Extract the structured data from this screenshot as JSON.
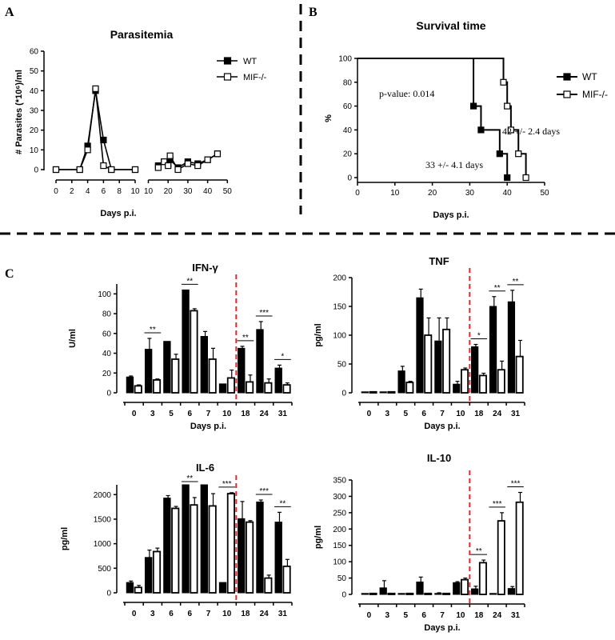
{
  "panels": {
    "A": "A",
    "B": "B",
    "C": "C"
  },
  "chart_data": [
    {
      "id": "parasitemia",
      "type": "line",
      "title": "Parasitemia",
      "xlabel": "Days p.i.",
      "ylabel": "# Parasites (*10⁶)/ml",
      "ylim": [
        0,
        60
      ],
      "yticks": [
        "0",
        "10",
        "20",
        "30",
        "40",
        "50",
        "60"
      ],
      "xticks_left": [
        "0",
        "2",
        "4",
        "6",
        "8",
        "10"
      ],
      "xticks_right": [
        "10",
        "20",
        "30",
        "40",
        "50"
      ],
      "legend": [
        "WT",
        "MIF-/-"
      ],
      "legend_position": "top-right",
      "series": [
        {
          "name": "WT",
          "marker": "filled-square",
          "x": [
            0,
            3,
            4,
            5,
            6,
            7,
            10,
            15,
            18,
            20,
            21,
            25,
            30,
            35,
            40,
            45
          ],
          "y": [
            0,
            0,
            12,
            40,
            15,
            0,
            0,
            2,
            4,
            3,
            5,
            1,
            4,
            3,
            5,
            8
          ]
        },
        {
          "name": "MIF-/-",
          "marker": "open-square",
          "x": [
            0,
            3,
            4,
            5,
            6,
            7,
            10,
            15,
            18,
            20,
            21,
            25,
            30,
            35,
            40,
            45
          ],
          "y": [
            0,
            0,
            10,
            41,
            2,
            0,
            0,
            1,
            4,
            2,
            7,
            0,
            3,
            2,
            5,
            8
          ]
        }
      ]
    },
    {
      "id": "survival",
      "type": "line",
      "title": "Survival time",
      "xlabel": "Days p.i.",
      "ylabel": "%",
      "xlim": [
        0,
        50
      ],
      "ylim": [
        0,
        100
      ],
      "xticks": [
        "0",
        "10",
        "20",
        "30",
        "40",
        "50"
      ],
      "yticks": [
        "0",
        "20",
        "40",
        "60",
        "80",
        "100"
      ],
      "legend": [
        "WT",
        "MIF-/-"
      ],
      "legend_position": "right",
      "annotations": [
        "p-value: 0.014",
        "42 +/- 2.4 days",
        "33 +/- 4.1 days"
      ],
      "series": [
        {
          "name": "WT",
          "x": [
            0,
            31,
            33,
            38,
            40
          ],
          "y": [
            100,
            60,
            40,
            20,
            0
          ]
        },
        {
          "name": "MIF-/-",
          "x": [
            0,
            39,
            40,
            41,
            43,
            45
          ],
          "y": [
            100,
            80,
            60,
            40,
            20,
            0
          ]
        }
      ]
    },
    {
      "id": "ifn",
      "type": "bar",
      "title": "IFN-γ",
      "xlabel": "Days p.i.",
      "ylabel": "U/ml",
      "ylim": [
        0,
        110
      ],
      "yticks": [
        "0",
        "20",
        "40",
        "60",
        "80",
        "100"
      ],
      "categories": [
        "0",
        "3",
        "5",
        "6",
        "7",
        "10",
        "18",
        "24",
        "31"
      ],
      "divider_after_index": 5,
      "series": [
        {
          "name": "WT",
          "values": [
            16,
            44,
            52,
            104,
            57,
            9,
            45,
            64,
            25
          ],
          "errors": [
            1,
            11,
            0,
            0,
            5,
            0,
            2,
            8,
            3
          ]
        },
        {
          "name": "MIF-/-",
          "values": [
            7,
            13,
            34,
            83,
            34,
            15,
            11,
            10,
            8
          ],
          "errors": [
            1,
            1,
            5,
            2,
            11,
            8,
            7,
            4,
            2
          ]
        }
      ],
      "significance": [
        {
          "index": 1,
          "label": "**"
        },
        {
          "index": 3,
          "label": "**"
        },
        {
          "index": 6,
          "label": "**"
        },
        {
          "index": 7,
          "label": "***"
        },
        {
          "index": 8,
          "label": "*"
        }
      ]
    },
    {
      "id": "tnf",
      "type": "bar",
      "title": "TNF",
      "xlabel": "Days p.i.",
      "ylabel": "pg/ml",
      "ylim": [
        0,
        200
      ],
      "yticks": [
        "0",
        "50",
        "100",
        "150",
        "200"
      ],
      "categories": [
        "0",
        "3",
        "5",
        "6",
        "7",
        "10",
        "18",
        "24",
        "31"
      ],
      "divider_after_index": 5,
      "series": [
        {
          "name": "WT",
          "values": [
            0,
            0,
            38,
            165,
            90,
            15,
            80,
            150,
            158
          ],
          "errors": [
            0,
            0,
            8,
            15,
            40,
            5,
            4,
            17,
            20
          ]
        },
        {
          "name": "MIF-/-",
          "values": [
            0,
            0,
            18,
            100,
            110,
            40,
            30,
            40,
            63
          ],
          "errors": [
            0,
            0,
            2,
            30,
            20,
            3,
            4,
            15,
            28
          ]
        }
      ],
      "significance": [
        {
          "index": 6,
          "label": "*"
        },
        {
          "index": 7,
          "label": "**"
        },
        {
          "index": 8,
          "label": "**"
        }
      ]
    },
    {
      "id": "il6",
      "type": "bar",
      "title": "IL-6",
      "xlabel": "",
      "ylabel": "pg/ml",
      "ylim": [
        0,
        2200
      ],
      "yticks": [
        "0",
        "500",
        "1000",
        "1500",
        "2000"
      ],
      "categories": [
        "0",
        "3",
        "6",
        "6",
        "7",
        "10",
        "18",
        "24",
        "31"
      ],
      "divider_after_index": 5,
      "series": [
        {
          "name": "WT",
          "values": [
            210,
            720,
            1930,
            2200,
            2200,
            210,
            1510,
            1850,
            1440
          ],
          "errors": [
            30,
            150,
            50,
            0,
            0,
            0,
            350,
            40,
            200
          ]
        },
        {
          "name": "MIF-/-",
          "values": [
            110,
            840,
            1720,
            1790,
            1770,
            2020,
            1440,
            300,
            540
          ],
          "errors": [
            40,
            70,
            40,
            150,
            250,
            20,
            30,
            60,
            140
          ]
        }
      ],
      "significance": [
        {
          "index": 3,
          "label": "**"
        },
        {
          "index": 5,
          "label": "***"
        },
        {
          "index": 7,
          "label": "***"
        },
        {
          "index": 8,
          "label": "**"
        }
      ]
    },
    {
      "id": "il10",
      "type": "bar",
      "title": "IL-10",
      "xlabel": "Days p.i.",
      "ylabel": "pg/ml",
      "ylim": [
        0,
        350
      ],
      "yticks": [
        "0",
        "50",
        "100",
        "150",
        "200",
        "250",
        "300",
        "350"
      ],
      "categories": [
        "0",
        "3",
        "5",
        "6",
        "7",
        "10",
        "18",
        "24",
        "31"
      ],
      "divider_after_index": 5,
      "series": [
        {
          "name": "WT",
          "values": [
            0,
            20,
            0,
            38,
            3,
            36,
            17,
            0,
            18
          ],
          "errors": [
            0,
            22,
            0,
            15,
            2,
            3,
            8,
            0,
            6
          ]
        },
        {
          "name": "MIF-/-",
          "values": [
            0,
            0,
            0,
            0,
            0,
            45,
            97,
            225,
            282
          ],
          "errors": [
            0,
            0,
            0,
            0,
            0,
            5,
            8,
            25,
            30
          ]
        }
      ],
      "significance": [
        {
          "index": 6,
          "label": "**"
        },
        {
          "index": 7,
          "label": "***"
        },
        {
          "index": 8,
          "label": "***"
        }
      ]
    }
  ]
}
